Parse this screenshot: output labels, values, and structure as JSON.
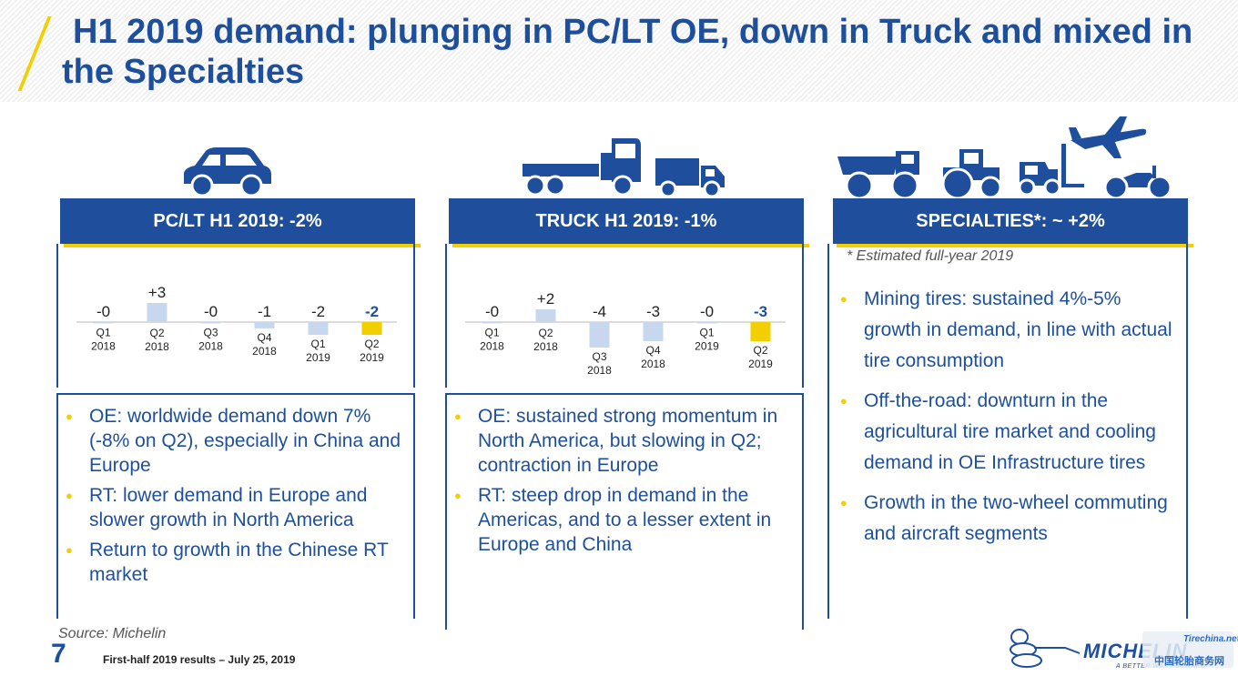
{
  "title": "H1 2019 demand: plunging in PC/LT OE, down in Truck and mixed in the Specialties",
  "colors": {
    "brand_blue": "#1f4f9c",
    "accent_yellow": "#f2cf00",
    "bar_light": "#c6d7ee"
  },
  "panels": {
    "pclt": {
      "header": "PC/LT H1 2019: -2%",
      "bullets": [
        "OE: worldwide demand down 7% (-8% on Q2), especially in China and Europe",
        "RT: lower demand in Europe and slower growth in North America",
        "Return to growth in the Chinese RT market"
      ]
    },
    "truck": {
      "header": "TRUCK H1 2019: -1%",
      "bullets": [
        "OE: sustained strong momentum in North America, but slowing in Q2; contraction in Europe",
        "RT: steep drop in demand in the Americas, and to a lesser extent in Europe and China"
      ]
    },
    "specialties": {
      "header": "SPECIALTIES*: ~ +2%",
      "footnote": "* Estimated full-year 2019",
      "bullets": [
        "Mining tires: sustained 4%-5% growth in demand, in line with actual tire consumption",
        "Off-the-road: downturn in the agricultural tire market and cooling demand in OE Infrastructure tires",
        "Growth in the two-wheel commuting and aircraft segments"
      ]
    }
  },
  "chart_data": [
    {
      "type": "bar",
      "categories": [
        "Q1 2018",
        "Q2 2018",
        "Q3 2018",
        "Q4 2018",
        "Q1 2019",
        "Q2 2019"
      ],
      "values": [
        -0.2,
        3,
        -0.2,
        -1,
        -2,
        -2
      ],
      "data_labels": [
        "-0",
        "+3",
        "-0",
        "-1",
        "-2",
        "-2"
      ],
      "highlight_last": true
    },
    {
      "type": "bar",
      "categories": [
        "Q1 2018",
        "Q2 2018",
        "Q3 2018",
        "Q4 2018",
        "Q1 2019",
        "Q2 2019"
      ],
      "values": [
        -0.2,
        2,
        -4,
        -3,
        -0.2,
        -3
      ],
      "data_labels": [
        "-0",
        "+2",
        "-4",
        "-3",
        "-0",
        "-3"
      ],
      "highlight_last": true
    }
  ],
  "footer": {
    "source": "Source: Michelin",
    "page_number": "7",
    "text": "First-half 2019 results – July 25, 2019",
    "logo_text": "MICHELIN",
    "logo_tagline": "A BETTER WAY FORWARD",
    "watermark_a": "Tirechina.net",
    "watermark_b": "中国轮胎商务网"
  }
}
